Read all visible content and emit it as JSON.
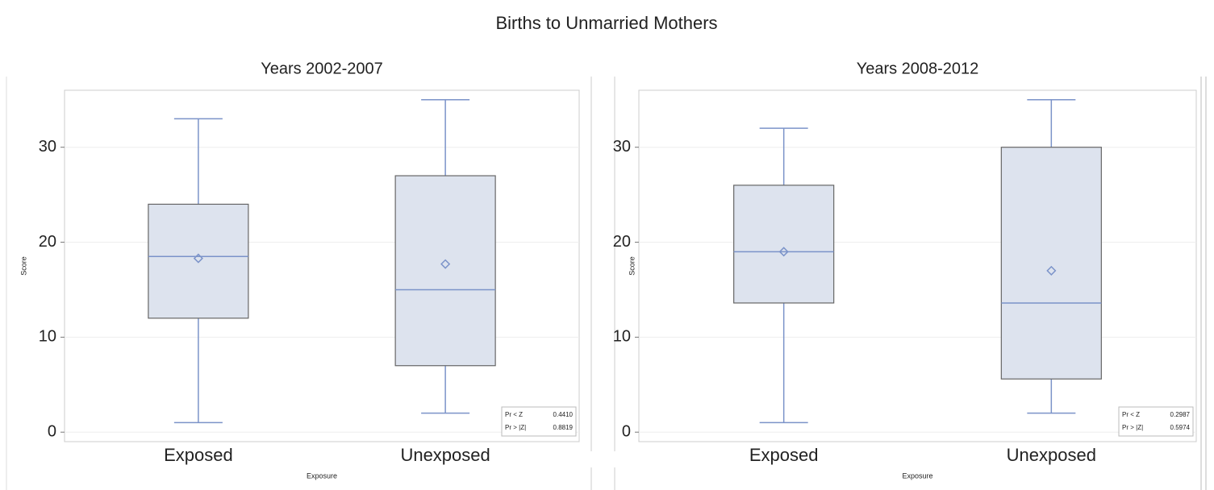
{
  "title": "Births to Unmarried Mothers",
  "chart_data": [
    {
      "type": "box",
      "title": "Years 2002-2007",
      "ylabel": "Score",
      "xlabel": "Exposure",
      "categories": [
        "Exposed",
        "Unexposed"
      ],
      "boxes": [
        {
          "min": 1,
          "q1": 12,
          "median": 18.5,
          "q3": 24,
          "max": 33,
          "mean": 18.3
        },
        {
          "min": 2,
          "q1": 7,
          "median": 15,
          "q3": 27,
          "max": 35,
          "mean": 17.7
        }
      ],
      "ylim": [
        -1,
        36
      ],
      "yticks": [
        0,
        10,
        20,
        30
      ],
      "grid": true,
      "stats": [
        {
          "name": "Pr < Z",
          "value": "0.4410"
        },
        {
          "name": "Pr > |Z|",
          "value": "0.8819"
        }
      ]
    },
    {
      "type": "box",
      "title": "Years 2008-2012",
      "ylabel": "Score",
      "xlabel": "Exposure",
      "categories": [
        "Exposed",
        "Unexposed"
      ],
      "boxes": [
        {
          "min": 1,
          "q1": 13.6,
          "median": 19,
          "q3": 26,
          "max": 32,
          "mean": 19
        },
        {
          "min": 2,
          "q1": 5.6,
          "median": 13.6,
          "q3": 30,
          "max": 35,
          "mean": 17
        }
      ],
      "ylim": [
        -1,
        36
      ],
      "yticks": [
        0,
        10,
        20,
        30
      ],
      "grid": true,
      "stats": [
        {
          "name": "Pr < Z",
          "value": "0.2987"
        },
        {
          "name": "Pr > |Z|",
          "value": "0.5974"
        }
      ]
    }
  ]
}
